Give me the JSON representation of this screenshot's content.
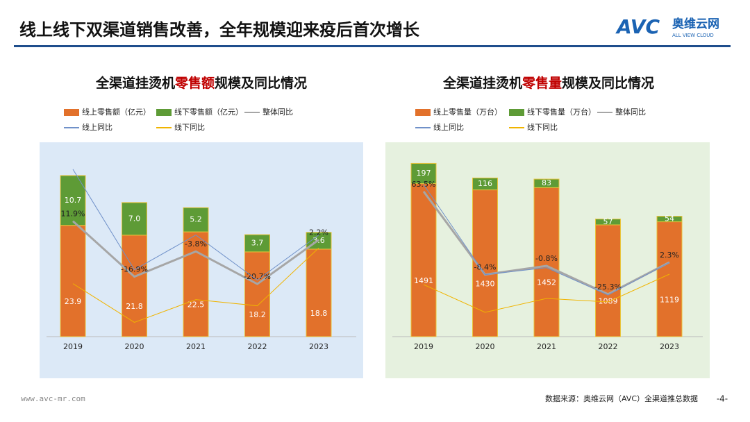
{
  "header": {
    "title": "线上线下双渠道销售改善，全年规模迎来疫后首次增长",
    "logo": "AVC",
    "logo_cn": "奥维云网",
    "logo_en": "ALL VIEW CLOUD"
  },
  "chart_data": [
    {
      "type": "bar",
      "stacked": true,
      "title": [
        "全渠道挂烫机",
        "零售额",
        "规模及同比情况"
      ],
      "categories": [
        "2019",
        "2020",
        "2021",
        "2022",
        "2023"
      ],
      "ylim": [
        0,
        41
      ],
      "y2lim": [
        -48,
        51
      ],
      "background": "#dce9f7",
      "series": [
        {
          "name": "线上零售额（亿元）",
          "type": "bar",
          "color": "#e2712b",
          "values": [
            23.9,
            21.8,
            22.5,
            18.2,
            18.8
          ]
        },
        {
          "name": "线下零售额（亿元）",
          "type": "bar",
          "color": "#5e9b36",
          "values": [
            10.7,
            7.0,
            5.2,
            3.7,
            3.6
          ],
          "value_labels": [
            "10.7",
            "7.0",
            "5.2",
            "3.7",
            "3.6"
          ]
        },
        {
          "name": "整体同比",
          "type": "line",
          "axis": "y2",
          "color": "#a6a6a6",
          "values": [
            11.9,
            -16.9,
            -3.8,
            -20.7,
            2.2
          ],
          "value_labels": [
            "11.9%",
            "-16.9%",
            "-3.8%",
            "-20.7%",
            "2.2%"
          ]
        },
        {
          "name": "线上同比",
          "type": "line",
          "axis": "y2",
          "color": "#7091c9",
          "values": [
            38.8,
            -13.3,
            4.7,
            -18.7,
            4.7
          ]
        },
        {
          "name": "线下同比",
          "type": "line",
          "axis": "y2",
          "color": "#f0b400",
          "values": [
            -20.5,
            -40.6,
            -28.8,
            -32,
            -2
          ]
        }
      ]
    },
    {
      "type": "bar",
      "stacked": true,
      "title": [
        "全渠道挂烫机",
        "零售量",
        "规模及同比情况"
      ],
      "categories": [
        "2019",
        "2020",
        "2021",
        "2022",
        "2023"
      ],
      "ylim": [
        0,
        1860
      ],
      "y2lim": [
        -62,
        103
      ],
      "background": "#e6f1df",
      "series": [
        {
          "name": "线上零售量（万台）",
          "type": "bar",
          "color": "#e2712b",
          "values": [
            1491,
            1430,
            1452,
            1089,
            1119
          ]
        },
        {
          "name": "线下零售量（万台）",
          "type": "bar",
          "color": "#5e9b36",
          "values": [
            197,
            116,
            83,
            57,
            54
          ]
        },
        {
          "name": "整体同比",
          "type": "line",
          "axis": "y2",
          "color": "#a6a6a6",
          "values": [
            63.5,
            -8.4,
            -0.8,
            -25.3,
            2.3
          ],
          "value_labels": [
            "63.5%",
            "-8.4%",
            "-0.8%",
            "-25.3%",
            "2.3%"
          ]
        },
        {
          "name": "线上同比",
          "type": "line",
          "axis": "y2",
          "color": "#7091c9",
          "values": [
            69.5,
            -8.4,
            -2.4,
            -26,
            2
          ]
        },
        {
          "name": "线下同比",
          "type": "line",
          "axis": "y2",
          "color": "#f0b400",
          "values": [
            -17,
            -41,
            -29,
            -32,
            -8
          ]
        }
      ]
    }
  ],
  "footer": {
    "url": "www.avc-mr.com",
    "source": "数据来源：奥维云网（AVC）全渠道推总数据",
    "page": "-4-"
  }
}
